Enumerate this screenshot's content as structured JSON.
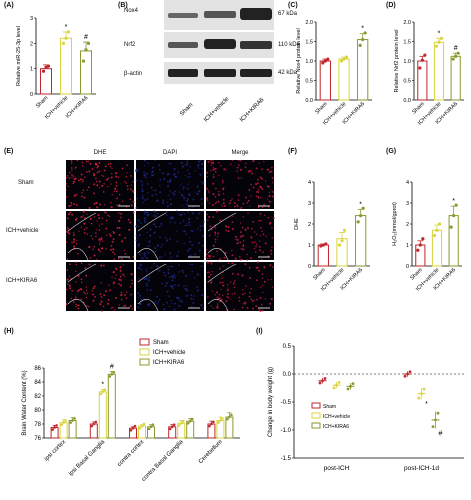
{
  "panels": {
    "A": {
      "label": "(A)"
    },
    "B": {
      "label": "(B)"
    },
    "C": {
      "label": "(C)"
    },
    "D": {
      "label": "(D)"
    },
    "E": {
      "label": "(E)"
    },
    "F": {
      "label": "(F)"
    },
    "G": {
      "label": "(G)"
    },
    "H": {
      "label": "(H)"
    },
    "I": {
      "label": "(I)"
    }
  },
  "western_blot": {
    "rows": [
      {
        "protein": "Nox4",
        "size": "67 kDa"
      },
      {
        "protein": "Nrf2",
        "size": "110 kDa"
      },
      {
        "protein": "β-actin",
        "size": "42 kDa"
      }
    ],
    "lanes": [
      "Sham",
      "ICH+vehicle",
      "ICH+KIRA6"
    ]
  },
  "microscopy": {
    "columns": [
      "DHE",
      "DAPI",
      "Merge"
    ],
    "rows": [
      "Sham",
      "ICH+vehicle",
      "ICH+KIRA6"
    ],
    "colors": {
      "dhe": "#d8203a",
      "dapi": "#1d2a8c",
      "merge": "#c01b3c"
    }
  },
  "groups": [
    "Sham",
    "ICH+vehicle",
    "ICH+KIRA6"
  ],
  "colors": {
    "sham": "#c0272d",
    "vehicle": "#d9d43f",
    "kira6": "#8a9a2e"
  },
  "chart_data": [
    {
      "id": "A",
      "type": "bar",
      "categories": [
        "Sham",
        "ICH+vehicle",
        "ICH+KIRA6"
      ],
      "values": [
        1.0,
        2.2,
        1.7
      ],
      "errors": [
        0.15,
        0.25,
        0.35
      ],
      "points": [
        [
          0.9,
          1.05,
          1.1
        ],
        [
          2.0,
          2.2,
          2.45
        ],
        [
          1.3,
          1.75,
          2.0
        ]
      ],
      "annotations": [
        "",
        "*",
        "#"
      ],
      "ylabel": "Relative miR-25-3p  level",
      "ylim": [
        0,
        3
      ],
      "yticks": [
        0,
        1,
        2,
        3
      ]
    },
    {
      "id": "C",
      "type": "bar",
      "categories": [
        "Sham",
        "ICH+vehicle",
        "ICH+KIRA6"
      ],
      "values": [
        1.0,
        1.05,
        1.55
      ],
      "errors": [
        0.05,
        0.05,
        0.15
      ],
      "points": [
        [
          0.95,
          1.0,
          1.05
        ],
        [
          1.0,
          1.05,
          1.1
        ],
        [
          1.4,
          1.55,
          1.72
        ]
      ],
      "annotations": [
        "",
        "",
        "*"
      ],
      "ylabel": "Relative Nox4 protein  level",
      "ylim": [
        0,
        2.0
      ],
      "yticks": [
        0.0,
        0.5,
        1.0,
        1.5,
        2.0
      ]
    },
    {
      "id": "D",
      "type": "bar",
      "categories": [
        "Sham",
        "ICH+vehicle",
        "ICH+KIRA6"
      ],
      "values": [
        1.0,
        1.48,
        1.12
      ],
      "errors": [
        0.12,
        0.1,
        0.08
      ],
      "points": [
        [
          0.82,
          1.02,
          1.15
        ],
        [
          1.38,
          1.48,
          1.58
        ],
        [
          1.05,
          1.12,
          1.2
        ]
      ],
      "annotations": [
        "",
        "*",
        "#"
      ],
      "ylabel": "Relative Nrf2 protein  level",
      "ylim": [
        0,
        2.0
      ],
      "yticks": [
        0.0,
        0.5,
        1.0,
        1.5,
        2.0
      ]
    },
    {
      "id": "F",
      "type": "bar",
      "categories": [
        "Sham",
        "ICH+vehicle",
        "ICH+KIRA6"
      ],
      "values": [
        1.0,
        1.3,
        2.4
      ],
      "errors": [
        0.05,
        0.3,
        0.3
      ],
      "points": [
        [
          0.95,
          1.0,
          1.05
        ],
        [
          1.0,
          1.2,
          1.7
        ],
        [
          2.1,
          2.4,
          2.75
        ]
      ],
      "annotations": [
        "",
        "",
        "*"
      ],
      "ylabel": "DHE",
      "ylim": [
        0,
        4
      ],
      "yticks": [
        0,
        1,
        2,
        3,
        4
      ]
    },
    {
      "id": "G",
      "type": "bar",
      "categories": [
        "Sham",
        "ICH+vehicle",
        "ICH+KIRA6"
      ],
      "values": [
        1.0,
        1.7,
        2.4
      ],
      "errors": [
        0.2,
        0.25,
        0.45
      ],
      "points": [
        [
          0.75,
          1.0,
          1.3
        ],
        [
          1.45,
          1.7,
          2.0
        ],
        [
          1.85,
          2.4,
          2.9
        ]
      ],
      "annotations": [
        "",
        "",
        "*"
      ],
      "ylabel": "H₂O₂(mmol/gprot)",
      "ylim": [
        0,
        4
      ],
      "yticks": [
        0,
        1,
        2,
        3,
        4
      ]
    },
    {
      "id": "H",
      "type": "bar",
      "categories": [
        "ipsi cortex",
        "ipsi Basal Ganglia",
        "contra cortex",
        "contra Basal Ganglia",
        "Cerebellum"
      ],
      "series": [
        {
          "name": "Sham",
          "values": [
            77.5,
            78.0,
            77.4,
            77.6,
            78.0
          ],
          "errors": [
            0.3,
            0.3,
            0.2,
            0.3,
            0.4
          ]
        },
        {
          "name": "ICH+vehicle",
          "values": [
            78.2,
            82.6,
            77.7,
            78.1,
            78.5
          ],
          "errors": [
            0.4,
            0.35,
            0.2,
            0.4,
            0.5
          ]
        },
        {
          "name": "ICH+KIRA6",
          "values": [
            78.5,
            85.1,
            77.6,
            78.4,
            79.0
          ],
          "errors": [
            0.4,
            0.4,
            0.3,
            0.4,
            0.6
          ]
        }
      ],
      "annotations": {
        "ipsi Basal Ganglia": [
          "",
          "*",
          "#"
        ]
      },
      "ylabel": "Brain Water Content (%)",
      "ylim": [
        76,
        86
      ],
      "yticks": [
        76,
        78,
        80,
        82,
        84,
        86
      ],
      "legend": "top-right"
    },
    {
      "id": "I",
      "type": "scatter",
      "categories": [
        "post-ICH",
        "post-ICH-1d"
      ],
      "series": [
        {
          "name": "Sham",
          "values": [
            -0.12,
            0.0
          ],
          "errors": [
            0.05,
            0.05
          ]
        },
        {
          "name": "ICH+vehicle",
          "values": [
            -0.2,
            -0.35
          ],
          "errors": [
            0.06,
            0.1
          ]
        },
        {
          "name": "ICH+KIRA6",
          "values": [
            -0.22,
            -0.82
          ],
          "errors": [
            0.06,
            0.15
          ]
        }
      ],
      "annotations": {
        "post-ICH-1d": [
          "",
          "*",
          "#"
        ]
      },
      "ylabel": "Change in body weight (g)",
      "ylim": [
        -1.5,
        0.5
      ],
      "yticks": [
        0.5,
        0.0,
        -0.5,
        -1.0,
        -1.5
      ],
      "legend": "center-left"
    }
  ]
}
